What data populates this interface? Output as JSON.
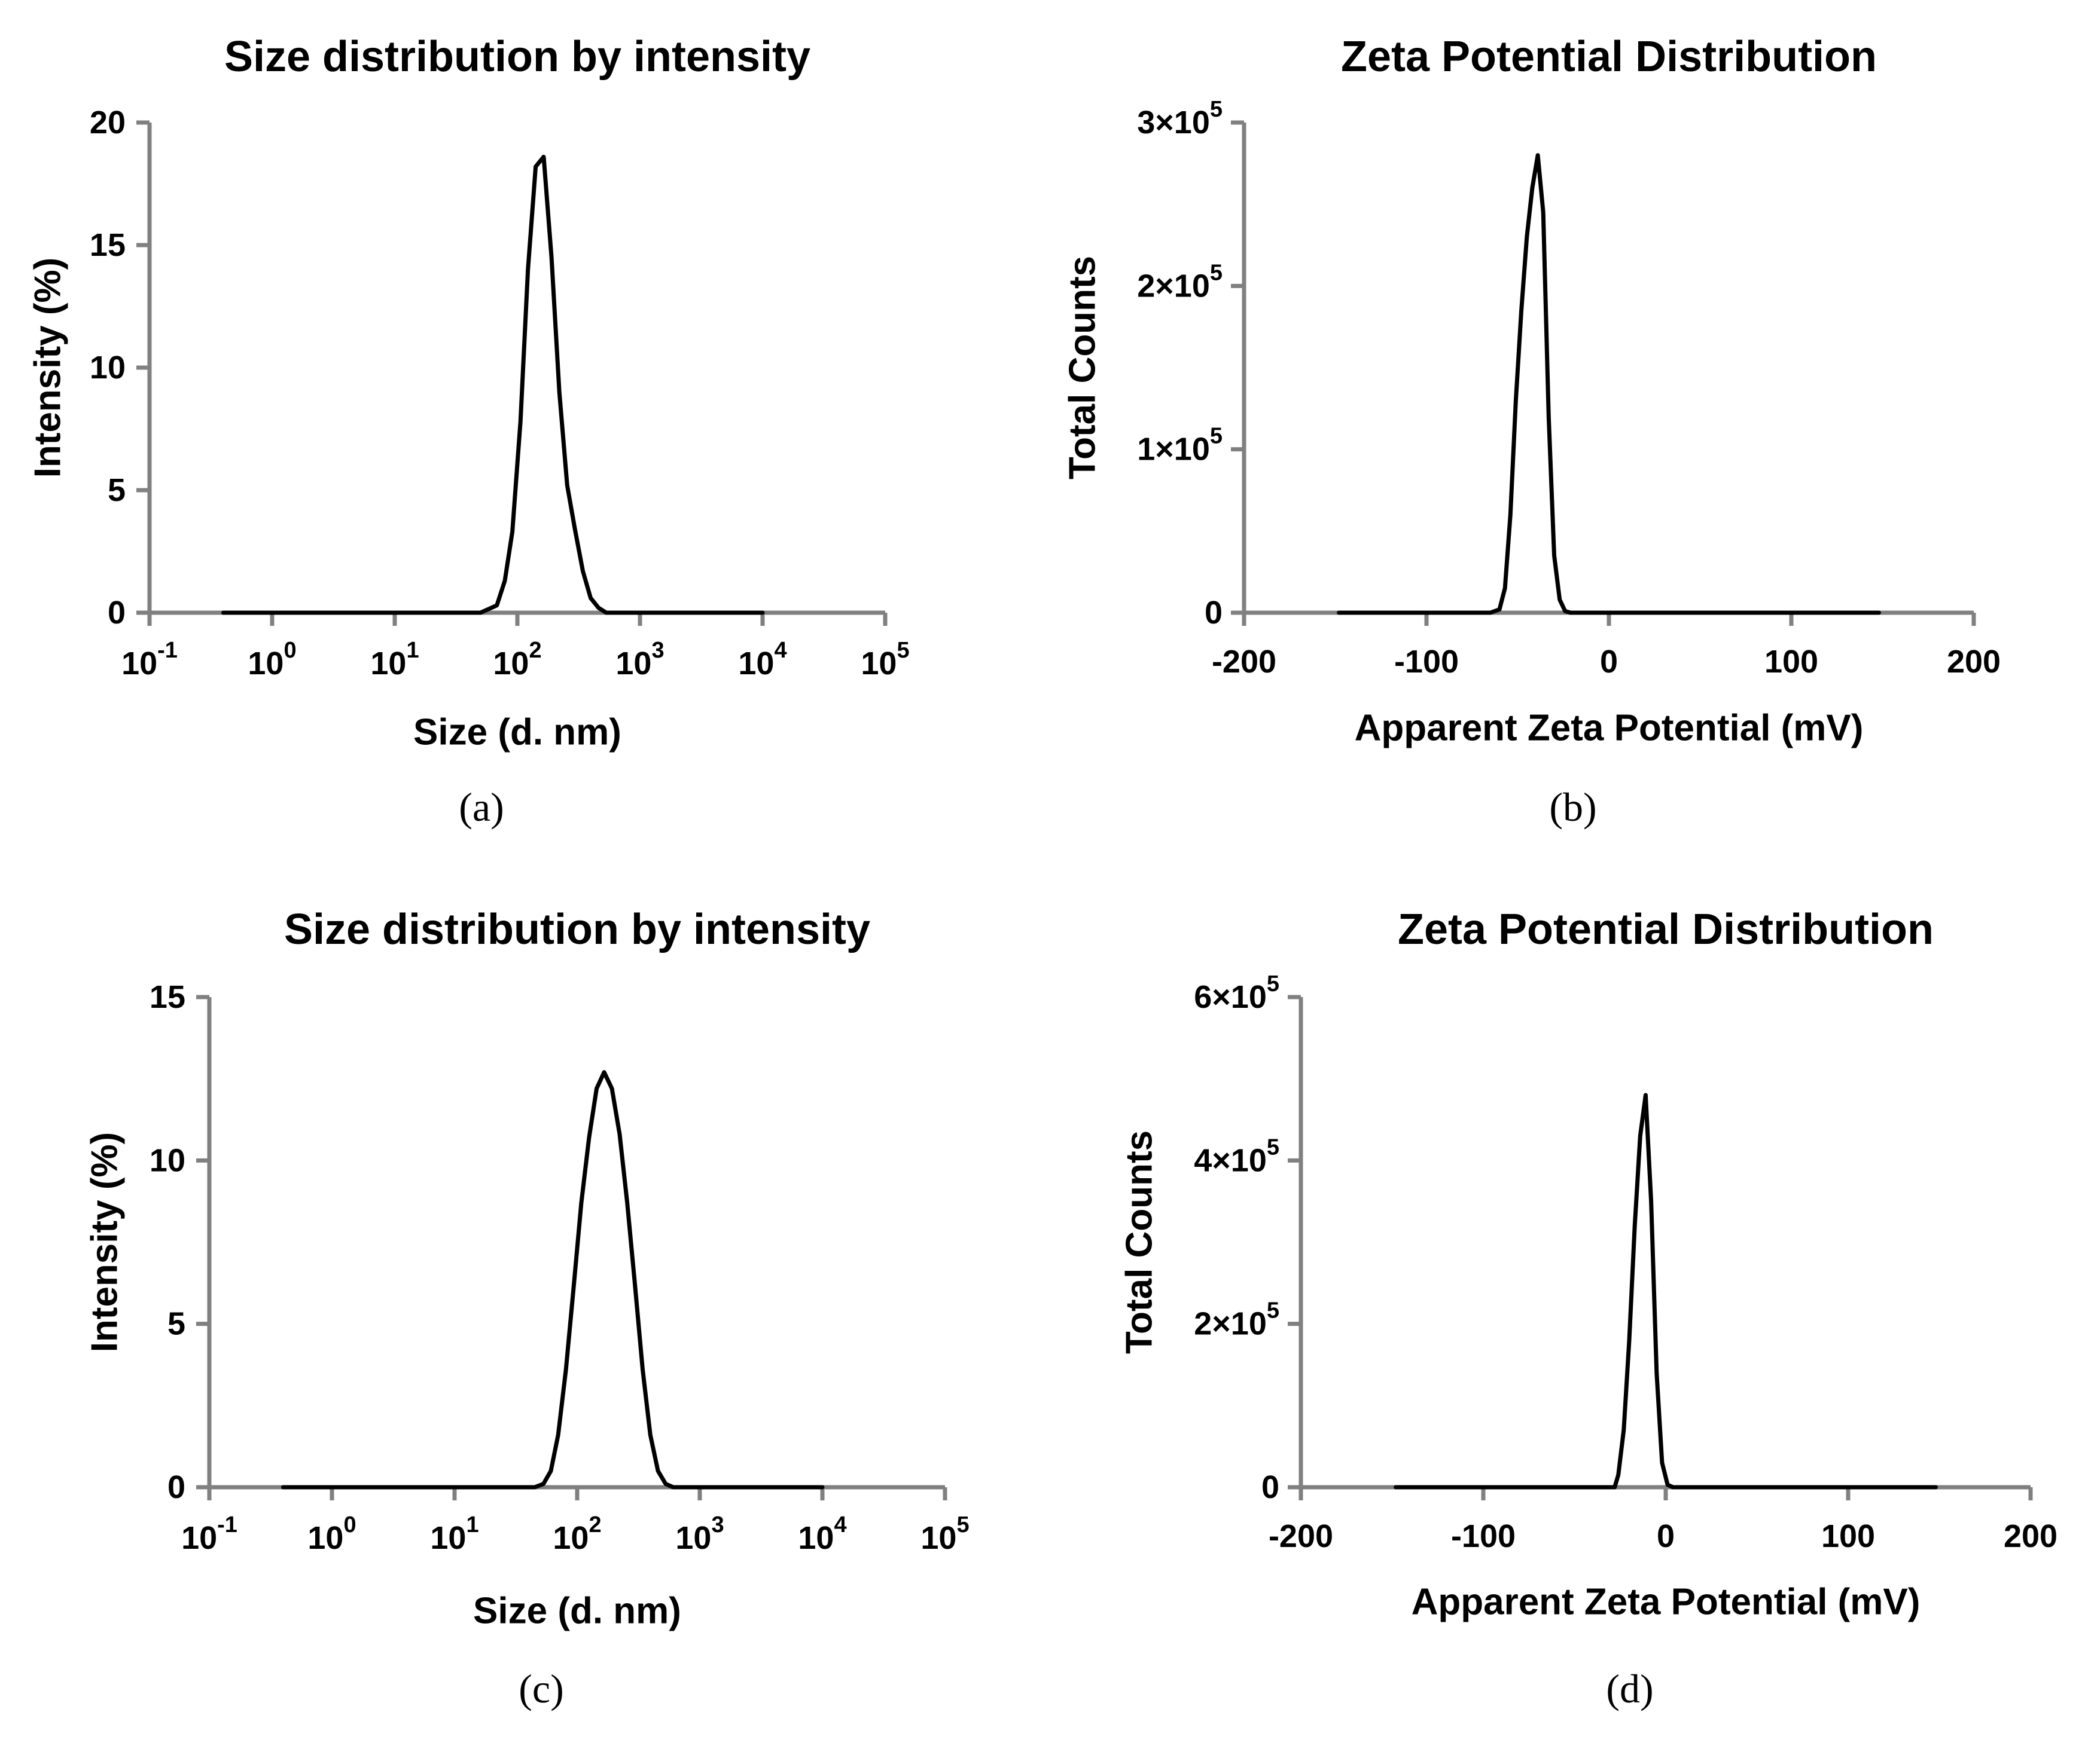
{
  "chart_data": [
    {
      "type": "line",
      "panel": "(a)",
      "title": "Size distribution by intensity",
      "xlabel": "Size (d. nm)",
      "ylabel": "Intensity (%)",
      "xscale": "log",
      "xlim": [
        0.1,
        100000
      ],
      "ylim": [
        0,
        20
      ],
      "xticks": [
        0.1,
        1,
        10,
        100,
        1000,
        10000,
        100000
      ],
      "xtick_labels": [
        {
          "base": "10",
          "exp": "-1"
        },
        {
          "base": "10",
          "exp": "0"
        },
        {
          "base": "10",
          "exp": "1"
        },
        {
          "base": "10",
          "exp": "2"
        },
        {
          "base": "10",
          "exp": "3"
        },
        {
          "base": "10",
          "exp": "4"
        },
        {
          "base": "10",
          "exp": "5"
        }
      ],
      "yticks": [
        0,
        5,
        10,
        15,
        20
      ],
      "ytick_labels": [
        "0",
        "5",
        "10",
        "15",
        "20"
      ],
      "series": [
        {
          "name": "Intensity",
          "x": [
            0.4,
            10,
            50,
            68,
            79,
            91,
            106,
            122,
            141,
            164,
            190,
            220,
            255,
            295,
            342,
            396,
            459,
            531,
            615,
            10000
          ],
          "y": [
            0,
            0,
            0,
            0.3,
            1.3,
            3.3,
            7.8,
            14,
            18.2,
            18.6,
            14.5,
            9,
            5.2,
            3.4,
            1.7,
            0.6,
            0.2,
            0,
            0,
            0
          ]
        }
      ]
    },
    {
      "type": "line",
      "panel": "(b)",
      "title": "Zeta Potential Distribution",
      "xlabel": "Apparent Zeta Potential (mV)",
      "ylabel": "Total Counts",
      "xscale": "linear",
      "xlim": [
        -200,
        200
      ],
      "ylim": [
        0,
        300000
      ],
      "xticks": [
        -200,
        -100,
        0,
        100,
        200
      ],
      "xtick_labels": [
        "-200",
        "-100",
        "0",
        "100",
        "200"
      ],
      "yticks": [
        0,
        100000,
        200000,
        300000
      ],
      "ytick_labels": [
        {
          "base": "0",
          "exp": ""
        },
        {
          "base": "1×10",
          "exp": "5"
        },
        {
          "base": "2×10",
          "exp": "5"
        },
        {
          "base": "3×10",
          "exp": "5"
        }
      ],
      "series": [
        {
          "name": "Total Counts",
          "x": [
            -148,
            -65,
            -60,
            -57,
            -54,
            -51,
            -48,
            -45,
            -42,
            -39,
            -36,
            -33,
            -30,
            -27,
            -24,
            -21,
            148
          ],
          "y": [
            0,
            0,
            2000,
            15000,
            60000,
            130000,
            185000,
            230000,
            260000,
            280000,
            245000,
            120000,
            35000,
            8000,
            1000,
            0,
            0
          ]
        }
      ]
    },
    {
      "type": "line",
      "panel": "(c)",
      "title": "Size distribution by intensity",
      "xlabel": "Size (d. nm)",
      "ylabel": "Intensity (%)",
      "xscale": "log",
      "xlim": [
        0.1,
        100000
      ],
      "ylim": [
        0,
        15
      ],
      "xticks": [
        0.1,
        1,
        10,
        100,
        1000,
        10000,
        100000
      ],
      "xtick_labels": [
        {
          "base": "10",
          "exp": "-1"
        },
        {
          "base": "10",
          "exp": "0"
        },
        {
          "base": "10",
          "exp": "1"
        },
        {
          "base": "10",
          "exp": "2"
        },
        {
          "base": "10",
          "exp": "3"
        },
        {
          "base": "10",
          "exp": "4"
        },
        {
          "base": "10",
          "exp": "5"
        }
      ],
      "yticks": [
        0,
        5,
        10,
        15
      ],
      "ytick_labels": [
        "0",
        "5",
        "10",
        "15"
      ],
      "series": [
        {
          "name": "Intensity",
          "x": [
            0.4,
            10,
            45,
            53,
            61,
            70,
            81,
            94,
            108,
            125,
            144,
            166,
            192,
            222,
            256,
            296,
            342,
            395,
            456,
            527,
            608,
            10000
          ],
          "y": [
            0,
            0,
            0,
            0.1,
            0.5,
            1.6,
            3.6,
            6.2,
            8.7,
            10.7,
            12.2,
            12.7,
            12.2,
            10.8,
            8.7,
            6.2,
            3.6,
            1.6,
            0.5,
            0.1,
            0,
            0
          ]
        }
      ]
    },
    {
      "type": "line",
      "panel": "(d)",
      "title": "Zeta Potential Distribution",
      "xlabel": "Apparent Zeta Potential (mV)",
      "ylabel": "Total Counts",
      "xscale": "linear",
      "xlim": [
        -200,
        200
      ],
      "ylim": [
        0,
        600000
      ],
      "xticks": [
        -200,
        -100,
        0,
        100,
        200
      ],
      "xtick_labels": [
        "-200",
        "-100",
        "0",
        "100",
        "200"
      ],
      "yticks": [
        0,
        200000,
        400000,
        600000
      ],
      "ytick_labels": [
        {
          "base": "0",
          "exp": ""
        },
        {
          "base": "2×10",
          "exp": "5"
        },
        {
          "base": "4×10",
          "exp": "5"
        },
        {
          "base": "6×10",
          "exp": "5"
        }
      ],
      "series": [
        {
          "name": "Total Counts",
          "x": [
            -148,
            -28,
            -26,
            -23,
            -20,
            -17,
            -14,
            -11,
            -8,
            -5,
            -2,
            1,
            4,
            148
          ],
          "y": [
            0,
            0,
            15000,
            70000,
            180000,
            320000,
            430000,
            480000,
            350000,
            140000,
            30000,
            3000,
            0,
            0
          ]
        }
      ]
    }
  ]
}
